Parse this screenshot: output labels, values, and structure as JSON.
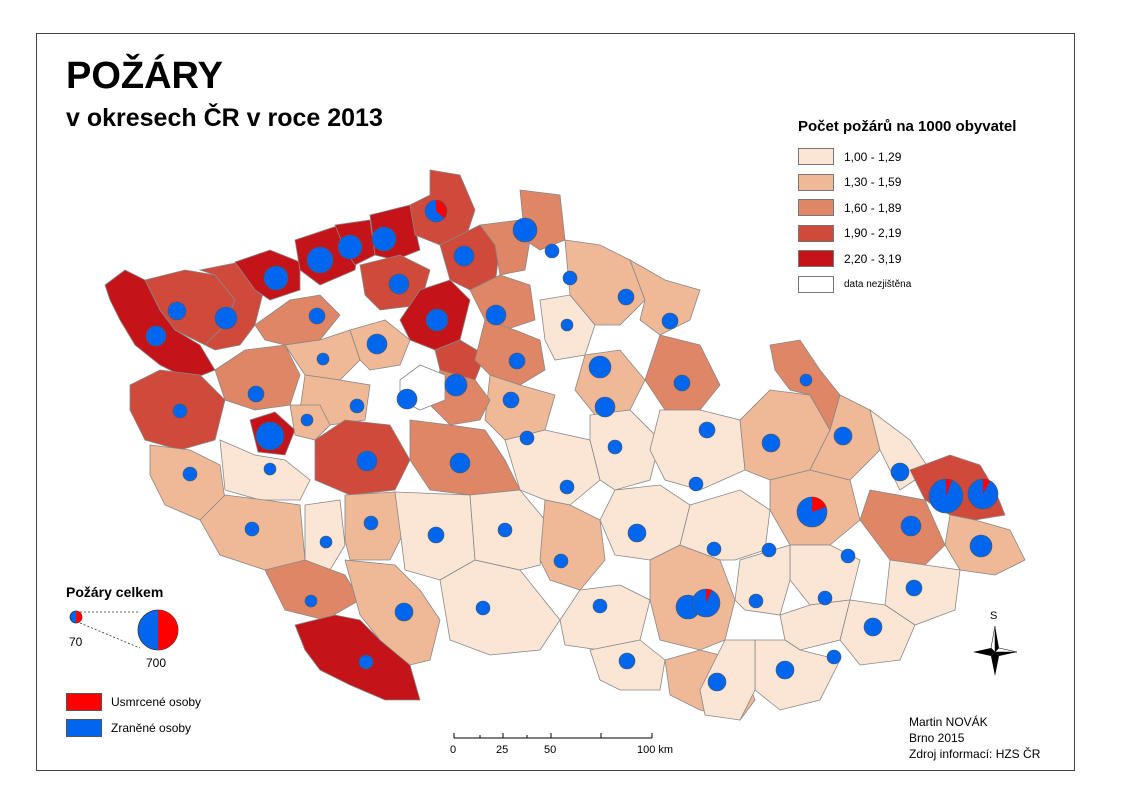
{
  "title": "POŽÁRY",
  "subtitle": "v okresech ČR v roce 2013",
  "legend": {
    "title": "Počet požárů na 1000 obyvatel",
    "classes": [
      {
        "label": "1,00 - 1,29",
        "color": "#fbe6d6"
      },
      {
        "label": "1,30 - 1,59",
        "color": "#efb896"
      },
      {
        "label": "1,60 - 1,89",
        "color": "#de8666"
      },
      {
        "label": "1,90 - 2,19",
        "color": "#cf4a3a"
      },
      {
        "label": "2,20 - 3,19",
        "color": "#c4141a"
      },
      {
        "label": "data nezjištěna",
        "color": "#ffffff"
      }
    ]
  },
  "pie_legend": {
    "title": "Požáry celkem",
    "min_label": "70",
    "max_label": "700"
  },
  "casualties": {
    "killed": {
      "label": "Usmrcené osoby",
      "color": "#ff0000"
    },
    "injured": {
      "label": "Zraněné osoby",
      "color": "#0066ee"
    }
  },
  "scale_bar": {
    "labels": [
      "0",
      "25",
      "50",
      "100 km"
    ]
  },
  "north_arrow": {
    "label": "S"
  },
  "credits": {
    "author": "Martin NOVÁK",
    "place_year": "Brno 2015",
    "source": "Zdroj informací: HZS ČR"
  }
}
